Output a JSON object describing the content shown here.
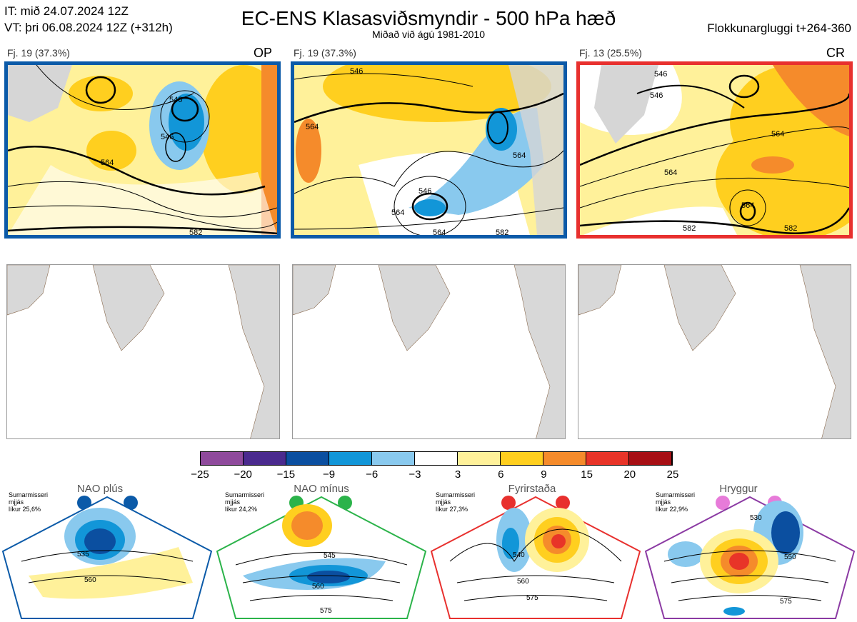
{
  "header": {
    "it_line": "IT: mið 24.07.2024 12Z",
    "vt_line": "VT: þri 06.08.2024 12Z  (+312h)",
    "title": "EC-ENS Klasasviðsmyndir - 500 hPa hæð",
    "subtitle": "Miðað við ágú 1981-2010",
    "window": "Flokkunargluggi t+264-360"
  },
  "panels": [
    {
      "cluster_label": "Fj. 19 (37.3%)",
      "tag": "OP",
      "frame_color": "#0b5aa8",
      "contour_labels": [
        "546",
        "546",
        "564",
        "582"
      ]
    },
    {
      "cluster_label": "Fj. 19 (37.3%)",
      "tag": "",
      "frame_color": "#0b5aa8",
      "contour_labels": [
        "546",
        "564",
        "546",
        "564",
        "564",
        "582",
        "564"
      ]
    },
    {
      "cluster_label": "Fj. 13 (25.5%)",
      "tag": "CR",
      "frame_color": "#e8302e",
      "contour_labels": [
        "546",
        "546",
        "564",
        "564",
        "582",
        "564",
        "582"
      ]
    }
  ],
  "colorbar": {
    "ticks": [
      "−25",
      "−20",
      "−15",
      "−9",
      "−6",
      "−3",
      "3",
      "6",
      "9",
      "15",
      "20",
      "25"
    ],
    "colors": [
      "#8f4a9c",
      "#4a2a8e",
      "#0b4fa0",
      "#1296d8",
      "#89c9ee",
      "#ffffff",
      "#fff19a",
      "#ffcf1f",
      "#f58b2b",
      "#e83428",
      "#a70f15"
    ]
  },
  "regimes": [
    {
      "name": "NAO plús",
      "season": "Sumarmisseri",
      "word": "mjjás",
      "likelihood": "líkur 25,6%",
      "color": "#0b5aa8",
      "contours": [
        "535",
        "560"
      ]
    },
    {
      "name": "NAO mínus",
      "season": "Sumarmisseri",
      "word": "mjjás",
      "likelihood": "líkur 24,2%",
      "color": "#2bb34a",
      "contours": [
        "545",
        "560",
        "575"
      ]
    },
    {
      "name": "Fyrirstaða",
      "season": "Sumarmisseri",
      "word": "mjjás",
      "likelihood": "líkur 27,3%",
      "color": "#e8302e",
      "contours": [
        "540",
        "560",
        "575"
      ]
    },
    {
      "name": "Hryggur",
      "season": "Sumarmisseri",
      "word": "mjjás",
      "likelihood": "líkur 22,9%",
      "color": "#e77bd9",
      "contours": [
        "530",
        "550",
        "575"
      ]
    }
  ],
  "chart_data": {
    "type": "heatmap",
    "title": "EC-ENS Klasasviðsmyndir - 500 hPa hæð",
    "subtitle": "Miðað við ágú 1981-2010",
    "colorbar_ticks": [
      -25,
      -20,
      -15,
      -9,
      -6,
      -3,
      3,
      6,
      9,
      15,
      20,
      25
    ],
    "clusters": [
      {
        "label": "Fj. 19 (37.3%)",
        "tag": "OP",
        "members": 19,
        "percent": 37.3
      },
      {
        "label": "Fj. 19 (37.3%)",
        "tag": "",
        "members": 19,
        "percent": 37.3
      },
      {
        "label": "Fj. 13 (25.5%)",
        "tag": "CR",
        "members": 13,
        "percent": 25.5
      }
    ],
    "regimes": [
      {
        "name": "NAO plús",
        "likelihood_percent": 25.6
      },
      {
        "name": "NAO mínus",
        "likelihood_percent": 24.2
      },
      {
        "name": "Fyrirstaða",
        "likelihood_percent": 27.3
      },
      {
        "name": "Hryggur",
        "likelihood_percent": 22.9
      }
    ]
  }
}
